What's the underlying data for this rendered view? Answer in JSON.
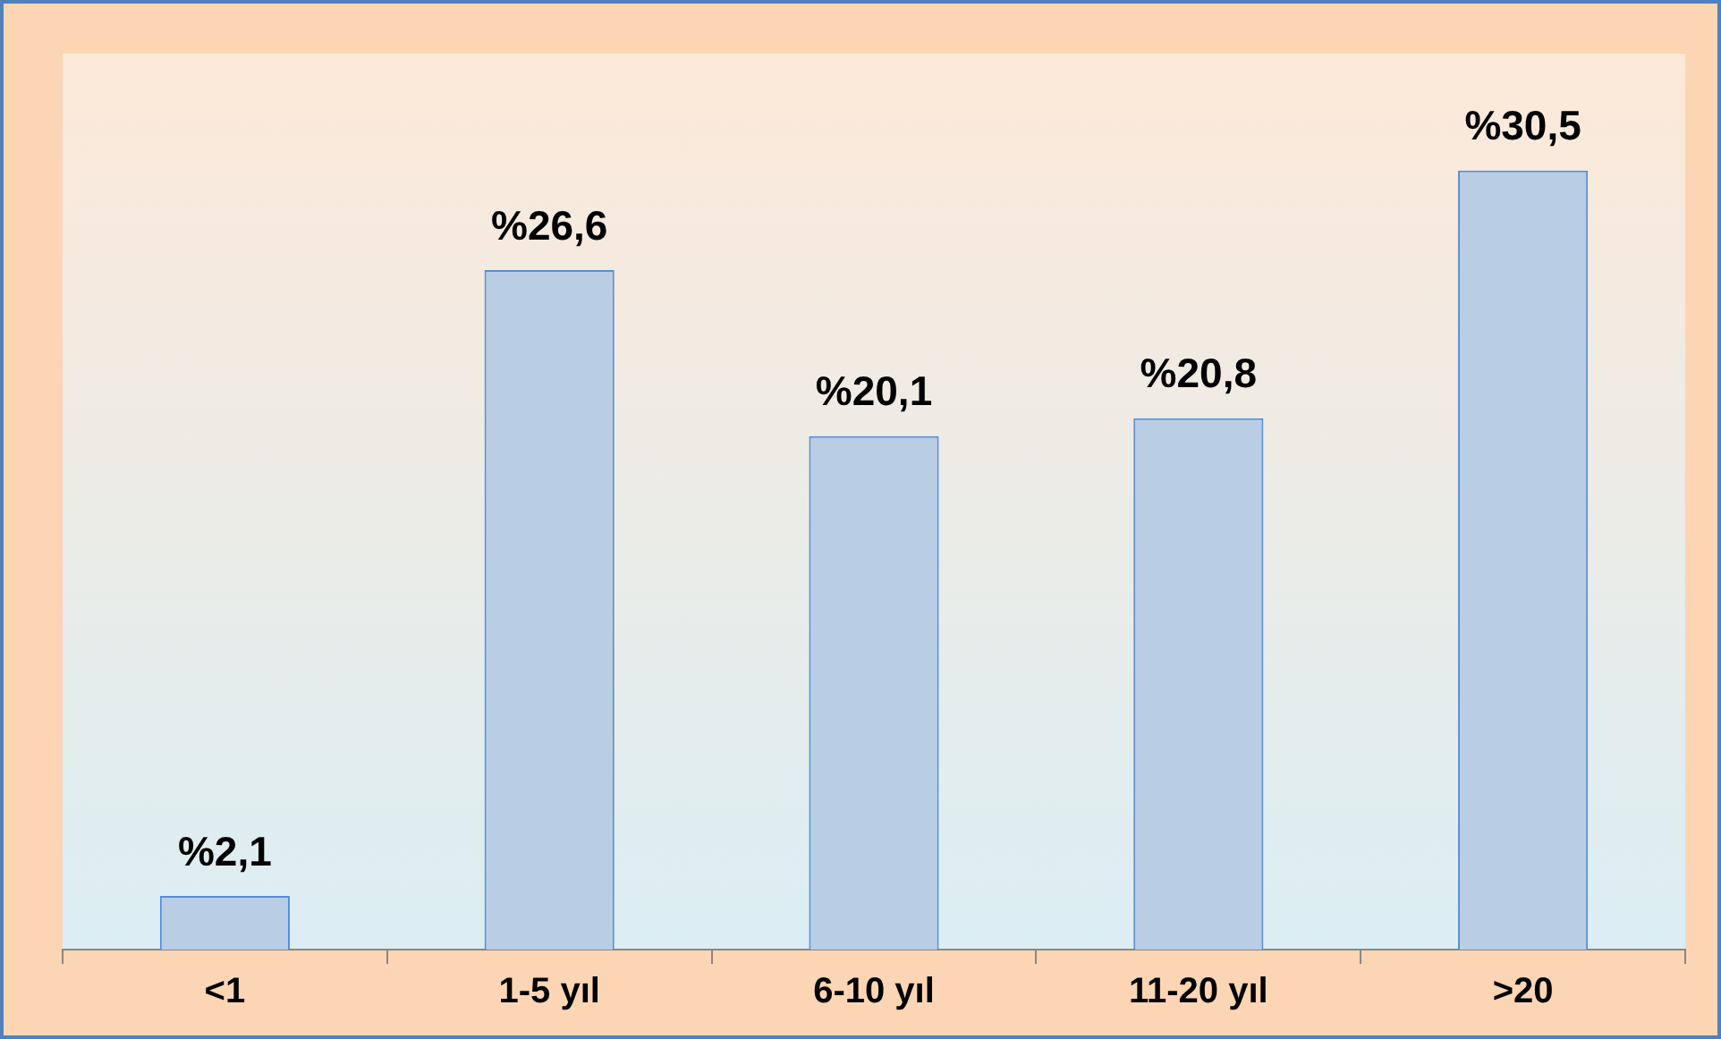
{
  "chart_data": {
    "type": "bar",
    "categories": [
      "<1",
      "1-5 yıl",
      "6-10 yıl",
      "11-20 yıl",
      ">20"
    ],
    "values": [
      2.1,
      26.6,
      20.1,
      20.8,
      30.5
    ],
    "color": "#b9cde5",
    "value_labels": [
      "%2,1",
      "%26,6",
      "%20,1",
      "%20,8",
      "%30,5"
    ],
    "grid": false,
    "legend": false
  }
}
